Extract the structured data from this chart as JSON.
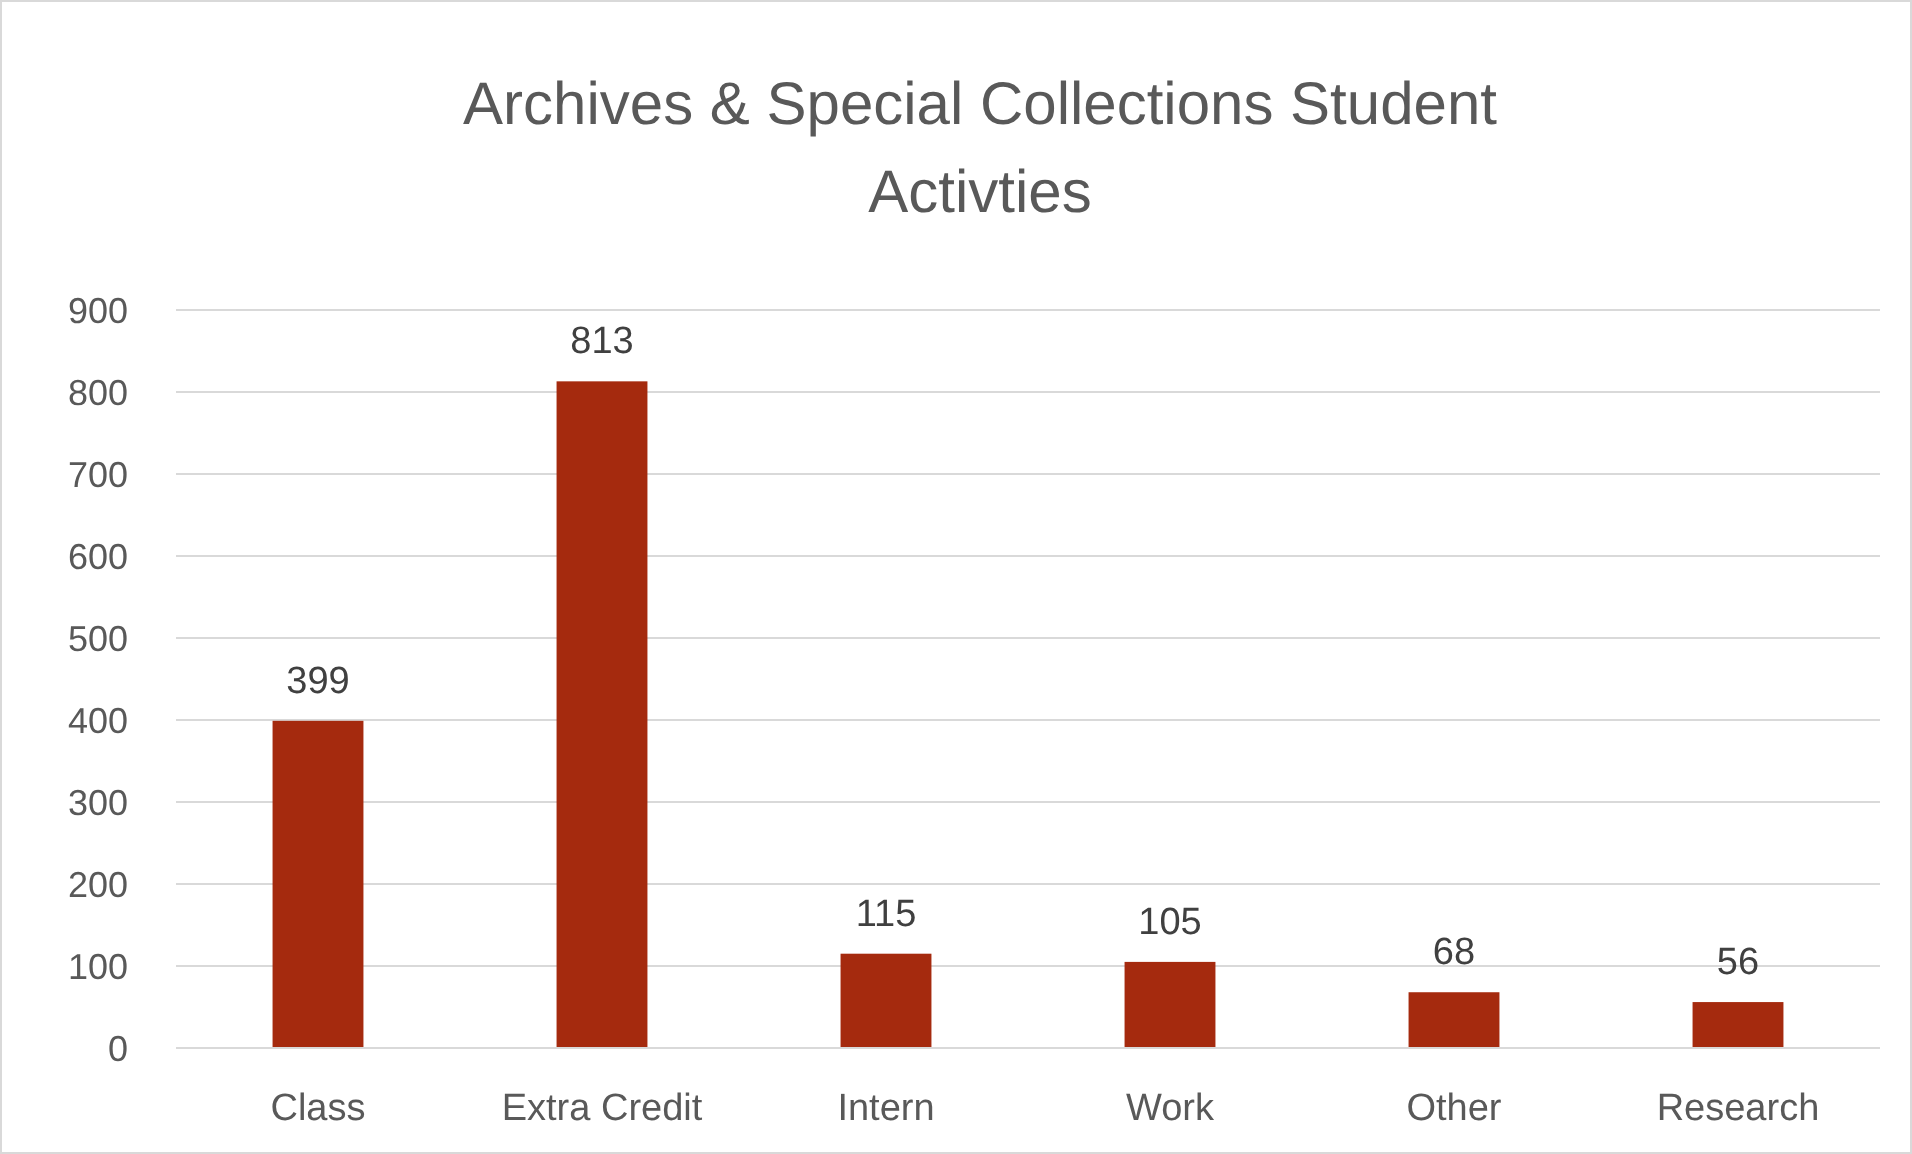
{
  "chart_data": {
    "type": "bar",
    "title": "Archives & Special Collections Student Activties",
    "categories": [
      "Class",
      "Extra Credit",
      "Intern",
      "Work",
      "Other",
      "Research"
    ],
    "values": [
      399,
      813,
      115,
      105,
      68,
      56
    ],
    "color": "#a52a0e",
    "ylim": [
      0,
      900
    ],
    "yticks": [
      0,
      100,
      200,
      300,
      400,
      500,
      600,
      700,
      800,
      900
    ],
    "grid": "y",
    "data_labels": true
  }
}
